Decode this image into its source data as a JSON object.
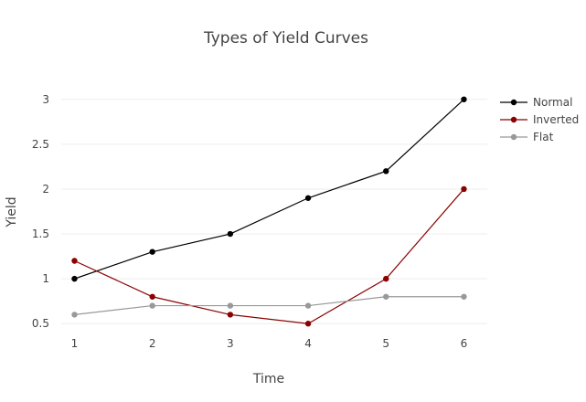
{
  "chart_data": {
    "type": "line",
    "title": "Types of Yield Curves",
    "xlabel": "Time",
    "ylabel": "Yield",
    "x": [
      1,
      2,
      3,
      4,
      5,
      6
    ],
    "xlim": [
      0.83,
      6.3
    ],
    "ylim": [
      0.38,
      3.13
    ],
    "yticks": [
      0.5,
      1,
      1.5,
      2,
      2.5,
      3
    ],
    "ytick_labels": [
      "0.5",
      "1",
      "1.5",
      "2",
      "2.5",
      "3"
    ],
    "xtick_labels": [
      "1",
      "2",
      "3",
      "4",
      "5",
      "6"
    ],
    "grid": "horizontal",
    "legend_position": "top-right",
    "series": [
      {
        "name": "Normal",
        "color": "#000000",
        "values": [
          1.0,
          1.3,
          1.5,
          1.9,
          2.2,
          3.0
        ]
      },
      {
        "name": "Inverted",
        "color": "#8b0000",
        "values": [
          1.2,
          0.8,
          0.6,
          0.5,
          1.0,
          2.0
        ]
      },
      {
        "name": "Flat",
        "color": "#999999",
        "values": [
          0.6,
          0.7,
          0.7,
          0.7,
          0.8,
          0.8
        ]
      }
    ]
  }
}
